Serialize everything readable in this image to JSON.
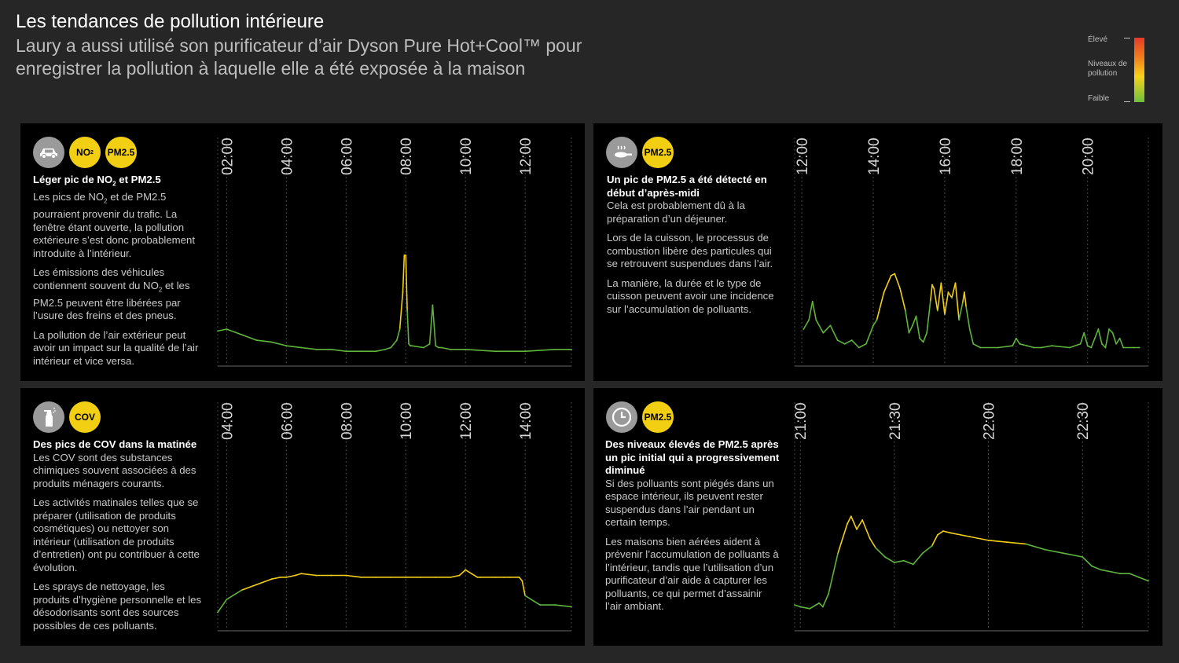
{
  "header": {
    "title": "Les tendances de pollution intérieure",
    "subtitle": "Laury a aussi utilisé son purificateur d’air Dyson Pure Hot+Cool™ pour enregistrer la pollution à laquelle elle a été exposée à la maison"
  },
  "legend": {
    "high": "Élevé",
    "label": "Niveaux de pollution",
    "low": "Faible",
    "colors": {
      "high": "#e53a28",
      "mid": "#f7d21c",
      "low": "#6fc03c"
    }
  },
  "colors": {
    "low_line": "#5fb43c",
    "high_line": "#f3cf14",
    "badge": "#f3cf14"
  },
  "panels": [
    {
      "badges": [
        "NO2",
        "PM2.5"
      ],
      "icon": "car-icon",
      "heading": "Léger pic de NO2 et PM2.5",
      "paragraphs": [
        "Les pics de NO2 et de PM2.5 pourraient provenir du trafic. La fenêtre étant ouverte, la pollution extérieure s’est donc probablement introduite à l’intérieur.",
        "Les émissions des véhicules contiennent souvent du NO2 et les PM2.5 peuvent être libérées par l’usure des freins et des pneus.",
        "La pollution de l’air extérieur peut avoir un impact sur la qualité de l’air intérieur et vice versa."
      ]
    },
    {
      "badges": [
        "PM2.5"
      ],
      "icon": "cooking-pan-icon",
      "heading": "Un pic de PM2.5 a été détecté en début d’après-midi",
      "paragraphs": [
        "Cela est probablement dû à la préparation d’un déjeuner.",
        "Lors de la cuisson, le processus de combustion libère des particules qui se retrouvent suspendues dans l’air.",
        "La manière, la durée et le type de cuisson peuvent avoir une incidence sur l’accumulation de polluants."
      ]
    },
    {
      "badges": [
        "COV"
      ],
      "icon": "spray-bottle-icon",
      "heading": "Des pics de COV dans la matinée",
      "paragraphs": [
        "Les COV sont des substances chimiques souvent associées à des produits ménagers courants.",
        "Les activités matinales telles que se préparer (utilisation de produits cosmétiques) ou nettoyer son intérieur (utilisation de produits d’entretien) ont pu contribuer à cette évolution.",
        "Les sprays de nettoyage, les produits d’hygiène personnelle et les désodorisants sont des sources possibles de ces polluants."
      ]
    },
    {
      "badges": [
        "PM2.5"
      ],
      "icon": "clock-icon",
      "heading": "Des niveaux élevés de PM2.5 après un pic initial qui a progressivement diminué",
      "paragraphs": [
        "Si des polluants sont piégés dans un espace intérieur, ils peuvent rester suspendus dans l’air pendant un certain temps.",
        "Les maisons bien aérées aident à prévenir l’accumulation de polluants à l’intérieur, tandis que l’utilisation d’un purificateur d’air aide à capturer les polluants, ce qui permet d’assainir l’air ambiant."
      ]
    }
  ],
  "chart_data": [
    {
      "type": "line",
      "x_unit": "hours",
      "xlim": [
        1.7,
        13.55
      ],
      "ylim": [
        0,
        100
      ],
      "ticks": [
        "02:00",
        "04:00",
        "06:00",
        "08:00",
        "10:00",
        "12:00"
      ],
      "tick_values": [
        2,
        4,
        6,
        8,
        10,
        12
      ],
      "high_threshold": 38,
      "x": [
        1.7,
        2.0,
        2.5,
        3.0,
        3.5,
        4.0,
        4.5,
        5.0,
        5.5,
        6.0,
        6.5,
        7.0,
        7.3,
        7.5,
        7.6,
        7.7,
        7.8,
        7.9,
        7.95,
        8.0,
        8.05,
        8.1,
        8.15,
        8.2,
        8.6,
        8.8,
        8.9,
        9.0,
        9.1,
        9.2,
        9.5,
        10.0,
        11.0,
        12.0,
        13.0,
        13.55
      ],
      "values": [
        19,
        20,
        17,
        14,
        13,
        11,
        10,
        9,
        9,
        8,
        8,
        8,
        9,
        10,
        12,
        14,
        20,
        40,
        60,
        60,
        30,
        12,
        11,
        11,
        10,
        12,
        33,
        11,
        10,
        10,
        9,
        9,
        8,
        8,
        9,
        9
      ]
    },
    {
      "type": "line",
      "x_unit": "hours",
      "xlim": [
        11.8,
        21.7
      ],
      "ylim": [
        0,
        100
      ],
      "ticks": [
        "12:00",
        "14:00",
        "16:00",
        "18:00",
        "20:00"
      ],
      "tick_values": [
        12,
        14,
        16,
        18,
        20
      ],
      "high_threshold": 40,
      "x": [
        12.05,
        12.2,
        12.3,
        12.4,
        12.6,
        12.8,
        13.0,
        13.2,
        13.4,
        13.6,
        13.8,
        14.0,
        14.1,
        14.3,
        14.5,
        14.6,
        14.75,
        14.9,
        15.0,
        15.1,
        15.2,
        15.3,
        15.4,
        15.5,
        15.6,
        15.65,
        15.7,
        15.8,
        15.9,
        16.0,
        16.1,
        16.2,
        16.3,
        16.4,
        16.5,
        16.55,
        16.6,
        16.7,
        16.8,
        17.0,
        17.5,
        17.9,
        18.0,
        18.1,
        18.3,
        18.5,
        18.7,
        19.0,
        19.5,
        19.8,
        19.9,
        20.0,
        20.1,
        20.2,
        20.3,
        20.4,
        20.5,
        20.6,
        20.7,
        20.8,
        20.9,
        21.0,
        21.3,
        21.45
      ],
      "values": [
        20,
        25,
        35,
        25,
        18,
        22,
        14,
        12,
        14,
        10,
        12,
        22,
        25,
        40,
        49,
        50,
        42,
        30,
        18,
        22,
        27,
        15,
        13,
        18,
        35,
        44,
        42,
        30,
        45,
        28,
        40,
        37,
        45,
        25,
        34,
        40,
        32,
        20,
        12,
        10,
        10,
        11,
        15,
        12,
        11,
        10,
        10,
        11,
        10,
        12,
        18,
        11,
        10,
        15,
        20,
        12,
        10,
        20,
        18,
        12,
        15,
        10,
        10,
        10
      ]
    },
    {
      "type": "line",
      "x_unit": "hours",
      "xlim": [
        3.7,
        15.55
      ],
      "ylim": [
        0,
        100
      ],
      "ticks": [
        "04:00",
        "06:00",
        "08:00",
        "10:00",
        "12:00",
        "14:00"
      ],
      "tick_values": [
        4,
        6,
        8,
        10,
        12,
        14
      ],
      "high_threshold": 24,
      "x": [
        3.7,
        4.0,
        4.5,
        5.0,
        5.5,
        5.8,
        6.0,
        6.3,
        6.5,
        7.0,
        7.5,
        8.0,
        8.5,
        9.0,
        9.5,
        10.0,
        10.5,
        11.0,
        11.5,
        11.8,
        12.0,
        12.2,
        12.4,
        12.5,
        13.0,
        13.3,
        13.5,
        13.8,
        13.9,
        14.0,
        14.3,
        14.5,
        15.0,
        15.55
      ],
      "values": [
        10,
        17,
        22,
        25,
        28,
        29,
        29,
        30,
        31,
        30,
        30,
        30,
        29,
        29,
        29,
        29,
        29,
        29,
        29,
        30,
        33,
        31,
        29,
        29,
        29,
        29,
        29,
        29,
        27,
        19,
        16,
        14,
        14,
        13
      ]
    },
    {
      "type": "line",
      "x_unit": "hours",
      "xlim": [
        20.97,
        22.85
      ],
      "ylim": [
        0,
        100
      ],
      "ticks": [
        "21:00",
        "21:30",
        "22:00",
        "22:30"
      ],
      "tick_values": [
        21.0,
        21.5,
        22.0,
        22.5
      ],
      "high_threshold": 48,
      "x": [
        20.97,
        21.0,
        21.05,
        21.1,
        21.12,
        21.15,
        21.2,
        21.25,
        21.27,
        21.3,
        21.33,
        21.37,
        21.4,
        21.45,
        21.5,
        21.55,
        21.6,
        21.65,
        21.7,
        21.73,
        21.76,
        21.8,
        21.9,
        22.0,
        22.1,
        22.2,
        22.3,
        22.4,
        22.5,
        22.55,
        22.6,
        22.7,
        22.75,
        22.8,
        22.85
      ],
      "values": [
        14,
        13,
        12,
        15,
        13,
        20,
        42,
        58,
        62,
        55,
        60,
        50,
        45,
        40,
        37,
        38,
        36,
        42,
        46,
        52,
        54,
        53,
        51,
        49,
        48,
        47,
        44,
        42,
        40,
        35,
        33,
        31,
        31,
        29,
        27
      ]
    }
  ]
}
